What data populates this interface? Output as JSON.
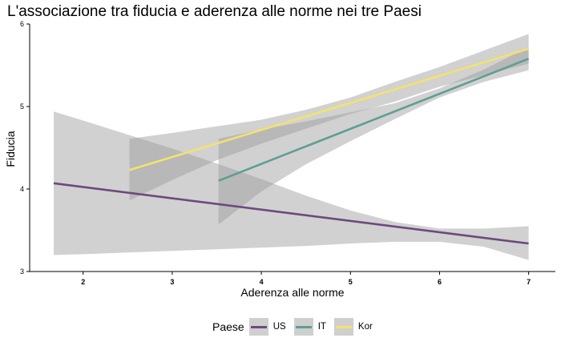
{
  "chart_data": {
    "type": "line",
    "title": "L'associazione tra fiducia e aderenza alle norme nei tre Paesi",
    "xlabel": "Aderenza alle norme",
    "ylabel": "Fiducia",
    "xlim": [
      1.4,
      7.3
    ],
    "ylim": [
      3.0,
      6.0
    ],
    "xticks": [
      "2",
      "3",
      "4",
      "5",
      "6",
      "7"
    ],
    "yticks": [
      "3",
      "4",
      "5",
      "6"
    ],
    "grid": false,
    "legend": {
      "title": "Paese",
      "position": "bottom"
    },
    "series": [
      {
        "name": "US",
        "color": "#6b4a7c",
        "x": [
          1.67,
          7.0
        ],
        "y": [
          4.07,
          3.34
        ],
        "band": {
          "x": [
            1.67,
            2.0,
            2.5,
            3.0,
            3.5,
            4.0,
            4.5,
            5.0,
            5.5,
            6.0,
            6.5,
            7.0
          ],
          "lower": [
            3.2,
            3.21,
            3.23,
            3.25,
            3.27,
            3.29,
            3.31,
            3.34,
            3.36,
            3.36,
            3.3,
            3.14
          ],
          "upper": [
            4.94,
            4.83,
            4.66,
            4.49,
            4.31,
            4.12,
            3.92,
            3.74,
            3.6,
            3.52,
            3.52,
            3.55
          ]
        }
      },
      {
        "name": "IT",
        "color": "#5e9e94",
        "x": [
          3.52,
          7.0
        ],
        "y": [
          4.1,
          5.58
        ],
        "band": {
          "x": [
            3.52,
            4.0,
            4.5,
            5.0,
            5.5,
            6.0,
            6.5,
            7.0
          ],
          "lower": [
            3.57,
            3.97,
            4.3,
            4.58,
            4.85,
            5.11,
            5.3,
            5.44
          ],
          "upper": [
            4.61,
            4.72,
            4.82,
            4.93,
            5.04,
            5.22,
            5.45,
            5.72
          ]
        }
      },
      {
        "name": "Kor",
        "color": "#f3e36b",
        "x": [
          2.52,
          7.0
        ],
        "y": [
          4.23,
          5.7
        ],
        "band": {
          "x": [
            2.52,
            3.0,
            3.5,
            4.0,
            4.5,
            5.0,
            5.5,
            6.0,
            6.5,
            7.0
          ],
          "lower": [
            3.86,
            4.11,
            4.35,
            4.55,
            4.73,
            4.91,
            5.06,
            5.24,
            5.38,
            5.52
          ],
          "upper": [
            4.61,
            4.68,
            4.76,
            4.84,
            4.96,
            5.11,
            5.3,
            5.48,
            5.68,
            5.88
          ]
        }
      }
    ]
  }
}
